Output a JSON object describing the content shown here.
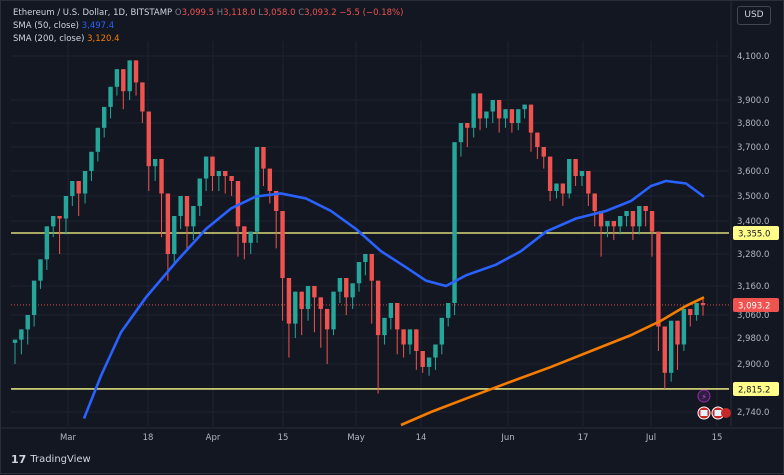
{
  "header": {
    "symbol": "Ethereum / U.S. Dollar, 1D, BITSTAMP",
    "o_label": "O",
    "o_value": "3,099.5",
    "h_label": "H",
    "h_value": "3,118.0",
    "l_label": "L",
    "l_value": "3,058.0",
    "c_label": "C",
    "c_value": "3,093.2",
    "change": "−5.5 (−0.18%)",
    "sma50_label": "SMA (50, close)",
    "sma50_value": "3,497.4",
    "sma200_label": "SMA (200, close)",
    "sma200_value": "3,120.4",
    "currency_button": "USD"
  },
  "brand": {
    "name": "TradingView",
    "logo_text": "17"
  },
  "colors": {
    "up": "#26a69a",
    "down": "#ef5350",
    "sma50": "#2962ff",
    "sma200": "#f57c00",
    "hline": "#ffff8a",
    "grid": "#1f2330",
    "axis_text": "#b2b5be"
  },
  "chart_data": {
    "type": "candlestick",
    "ylim": [
      2700,
      4150
    ],
    "x_ticks": [
      "Mar",
      "18",
      "Apr",
      "15",
      "May",
      "14",
      "Jun",
      "17",
      "Jul",
      "15"
    ],
    "y_ticks": [
      "4,100.0",
      "3,900.0",
      "3,800.0",
      "3,700.0",
      "3,600.0",
      "3,500.0",
      "3,400.0",
      "3,280.0",
      "3,160.0",
      "3,060.0",
      "2,980.0",
      "2,900.0",
      "2,740.0"
    ],
    "y_tick_values": [
      4100,
      3900,
      3800,
      3700,
      3600,
      3500,
      3400,
      3280,
      3160,
      3060,
      2980,
      2900,
      2740
    ],
    "horizontal_lines": [
      {
        "value": 3355.0,
        "label": "3,355.0"
      },
      {
        "value": 2815.2,
        "label": "2,815.2"
      }
    ],
    "last_price": {
      "value": 3093.2,
      "label": "3,093.2"
    },
    "candles": [
      [
        2965,
        2975,
        2930,
        2900
      ],
      [
        2975,
        3010,
        2960,
        2930
      ],
      [
        3010,
        3060,
        3000,
        2960
      ],
      [
        3060,
        3180,
        3040,
        3020
      ],
      [
        3180,
        3260,
        3160,
        3150
      ],
      [
        3260,
        3380,
        3240,
        3220
      ],
      [
        3380,
        3420,
        3360,
        3340
      ],
      [
        3420,
        3410,
        3300,
        3280
      ],
      [
        3410,
        3500,
        3380,
        3350
      ],
      [
        3500,
        3560,
        3480,
        3460
      ],
      [
        3560,
        3510,
        3450,
        3420
      ],
      [
        3510,
        3600,
        3490,
        3470
      ],
      [
        3600,
        3680,
        3580,
        3560
      ],
      [
        3680,
        3780,
        3660,
        3640
      ],
      [
        3780,
        3870,
        3760,
        3740
      ],
      [
        3870,
        3960,
        3850,
        3820
      ],
      [
        3960,
        4040,
        3940,
        3920
      ],
      [
        4040,
        3940,
        3880,
        3860
      ],
      [
        3940,
        4080,
        3920,
        3900
      ],
      [
        4080,
        3980,
        3960,
        3920
      ],
      [
        3980,
        3850,
        3820,
        3800
      ],
      [
        3850,
        3620,
        3560,
        3520
      ],
      [
        3620,
        3650,
        3600,
        3560
      ],
      [
        3650,
        3510,
        3380,
        3340
      ],
      [
        3510,
        3280,
        3210,
        3180
      ],
      [
        3280,
        3420,
        3260,
        3240
      ],
      [
        3420,
        3500,
        3400,
        3370
      ],
      [
        3500,
        3380,
        3340,
        3300
      ],
      [
        3380,
        3460,
        3360,
        3330
      ],
      [
        3460,
        3570,
        3440,
        3420
      ],
      [
        3570,
        3660,
        3550,
        3520
      ],
      [
        3660,
        3580,
        3540,
        3520
      ],
      [
        3580,
        3600,
        3560,
        3520
      ],
      [
        3600,
        3580,
        3540,
        3510
      ],
      [
        3580,
        3560,
        3520,
        3500
      ],
      [
        3560,
        3380,
        3300,
        3270
      ],
      [
        3380,
        3320,
        3300,
        3260
      ],
      [
        3320,
        3360,
        3300,
        3280
      ],
      [
        3360,
        3700,
        3340,
        3320
      ],
      [
        3700,
        3610,
        3560,
        3540
      ],
      [
        3610,
        3520,
        3500,
        3470
      ],
      [
        3520,
        3440,
        3340,
        3300
      ],
      [
        3440,
        3190,
        3080,
        3040
      ],
      [
        3190,
        3030,
        2960,
        2920
      ],
      [
        3030,
        3140,
        3000,
        2980
      ],
      [
        3140,
        3080,
        3020,
        2990
      ],
      [
        3080,
        3160,
        3060,
        3040
      ],
      [
        3160,
        3120,
        3040,
        3000
      ],
      [
        3120,
        3080,
        3000,
        2950
      ],
      [
        3080,
        3010,
        2940,
        2900
      ],
      [
        3010,
        3140,
        3000,
        2990
      ],
      [
        3140,
        3190,
        3120,
        3100
      ],
      [
        3190,
        3120,
        3080,
        3060
      ],
      [
        3120,
        3170,
        3110,
        3080
      ],
      [
        3170,
        3250,
        3150,
        3140
      ],
      [
        3250,
        3280,
        3220,
        3200
      ],
      [
        3280,
        3180,
        3060,
        3030
      ],
      [
        3180,
        2990,
        2920,
        2800
      ],
      [
        2990,
        3050,
        2980,
        2960
      ],
      [
        3050,
        3100,
        3030,
        3010
      ],
      [
        3100,
        3010,
        2960,
        2930
      ],
      [
        3010,
        2960,
        2940,
        2920
      ],
      [
        2960,
        3010,
        2950,
        2930
      ],
      [
        3010,
        2940,
        2900,
        2880
      ],
      [
        2940,
        2890,
        2880,
        2870
      ],
      [
        2890,
        2920,
        2880,
        2860
      ],
      [
        2920,
        2960,
        2900,
        2880
      ],
      [
        2960,
        3050,
        2940,
        2930
      ],
      [
        3050,
        3100,
        3040,
        3020
      ],
      [
        3100,
        3720,
        3080,
        3060
      ],
      [
        3720,
        3800,
        3700,
        3660
      ],
      [
        3800,
        3780,
        3750,
        3700
      ],
      [
        3780,
        3930,
        3760,
        3740
      ],
      [
        3930,
        3820,
        3800,
        3770
      ],
      [
        3820,
        3850,
        3800,
        3780
      ],
      [
        3850,
        3900,
        3830,
        3800
      ],
      [
        3900,
        3820,
        3800,
        3760
      ],
      [
        3820,
        3860,
        3800,
        3780
      ],
      [
        3860,
        3800,
        3780,
        3760
      ],
      [
        3800,
        3860,
        3780,
        3770
      ],
      [
        3860,
        3880,
        3840,
        3820
      ],
      [
        3880,
        3760,
        3700,
        3680
      ],
      [
        3760,
        3700,
        3680,
        3650
      ],
      [
        3700,
        3660,
        3640,
        3610
      ],
      [
        3660,
        3520,
        3500,
        3480
      ],
      [
        3520,
        3550,
        3500,
        3490
      ],
      [
        3550,
        3510,
        3480,
        3460
      ],
      [
        3510,
        3650,
        3500,
        3490
      ],
      [
        3650,
        3580,
        3560,
        3540
      ],
      [
        3580,
        3600,
        3560,
        3540
      ],
      [
        3600,
        3510,
        3480,
        3460
      ],
      [
        3510,
        3440,
        3410,
        3380
      ],
      [
        3440,
        3380,
        3300,
        3270
      ],
      [
        3380,
        3400,
        3360,
        3340
      ],
      [
        3400,
        3380,
        3360,
        3330
      ],
      [
        3380,
        3420,
        3370,
        3350
      ],
      [
        3420,
        3440,
        3400,
        3380
      ],
      [
        3440,
        3380,
        3360,
        3330
      ],
      [
        3380,
        3460,
        3370,
        3350
      ],
      [
        3460,
        3440,
        3400,
        3380
      ],
      [
        3440,
        3360,
        3300,
        3270
      ],
      [
        3360,
        3020,
        2960,
        2940
      ],
      [
        3020,
        2870,
        2820,
        2815
      ],
      [
        2870,
        3040,
        2850,
        2840
      ],
      [
        3040,
        2960,
        2900,
        2880
      ],
      [
        2960,
        3080,
        2950,
        2940
      ],
      [
        3080,
        3060,
        3040,
        3020
      ],
      [
        3060,
        3100,
        3050,
        3040
      ],
      [
        3100,
        3093.2,
        3118,
        3058
      ]
    ],
    "sma50": [
      [
        83,
        2720
      ],
      [
        100,
        2860
      ],
      [
        120,
        3000
      ],
      [
        145,
        3120
      ],
      [
        175,
        3250
      ],
      [
        205,
        3370
      ],
      [
        230,
        3450
      ],
      [
        255,
        3498
      ],
      [
        280,
        3510
      ],
      [
        305,
        3490
      ],
      [
        330,
        3440
      ],
      [
        355,
        3370
      ],
      [
        380,
        3290
      ],
      [
        405,
        3230
      ],
      [
        425,
        3180
      ],
      [
        445,
        3160
      ],
      [
        465,
        3200
      ],
      [
        495,
        3240
      ],
      [
        520,
        3290
      ],
      [
        545,
        3360
      ],
      [
        575,
        3410
      ],
      [
        605,
        3440
      ],
      [
        630,
        3480
      ],
      [
        650,
        3540
      ],
      [
        665,
        3560
      ],
      [
        685,
        3550
      ],
      [
        703,
        3497
      ]
    ],
    "sma200": [
      [
        400,
        2700
      ],
      [
        430,
        2740
      ],
      [
        470,
        2790
      ],
      [
        510,
        2840
      ],
      [
        550,
        2890
      ],
      [
        590,
        2940
      ],
      [
        630,
        2990
      ],
      [
        660,
        3040
      ],
      [
        685,
        3090
      ],
      [
        703,
        3120
      ]
    ]
  }
}
